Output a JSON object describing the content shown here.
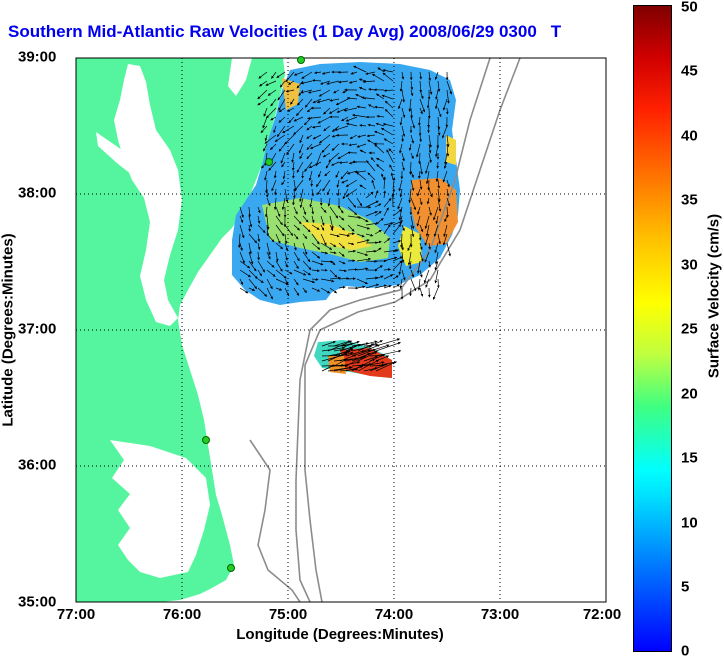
{
  "title": "Southern Mid-Atlantic Raw Velocities (1 Day Avg) 2008/06/29 0300",
  "title_suffix": "T",
  "x_axis": {
    "label": "Longitude (Degrees:Minutes)",
    "ticks": [
      "77:00",
      "76:00",
      "75:00",
      "74:00",
      "73:00",
      "72:00"
    ]
  },
  "y_axis": {
    "label": "Latitude (Degrees:Minutes)",
    "ticks": [
      "39:00",
      "38:00",
      "37:00",
      "36:00",
      "35:00"
    ]
  },
  "colorbar": {
    "label": "Surface Velocity (cm/s)",
    "ticks": [
      "50",
      "45",
      "40",
      "35",
      "30",
      "25",
      "20",
      "15",
      "10",
      "5",
      "0"
    ],
    "min": 0,
    "max": 50
  },
  "colors": {
    "land": "#55f5a0",
    "title": "#0000ee",
    "bathymetry": "#8c8c8c",
    "station": "#22cc22"
  }
}
